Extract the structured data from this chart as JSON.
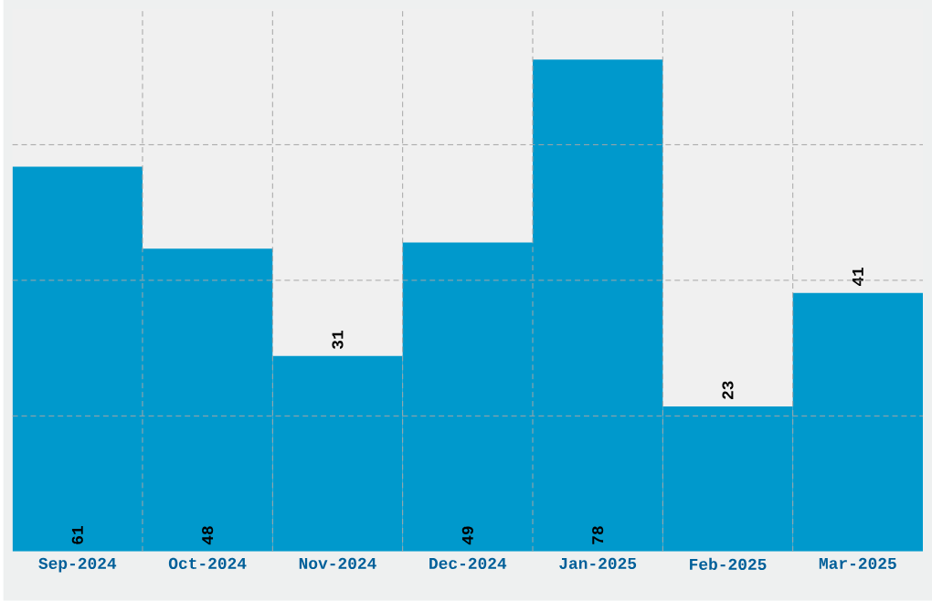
{
  "chart_data": {
    "type": "bar",
    "categories": [
      "Sep-2024",
      "Oct-2024",
      "Nov-2024",
      "Dec-2024",
      "Jan-2025",
      "Feb-2025",
      "Mar-2025"
    ],
    "values": [
      61,
      48,
      31,
      49,
      78,
      23,
      41
    ],
    "color": "#0099cc",
    "ylim": [
      0,
      86
    ],
    "yticks": [
      {
        "value": 21.5,
        "label": null
      },
      {
        "value": 43,
        "label": null
      },
      {
        "value": 64.5,
        "label": null
      }
    ],
    "tick_labels": "x",
    "grid": true,
    "data_labels": true
  }
}
